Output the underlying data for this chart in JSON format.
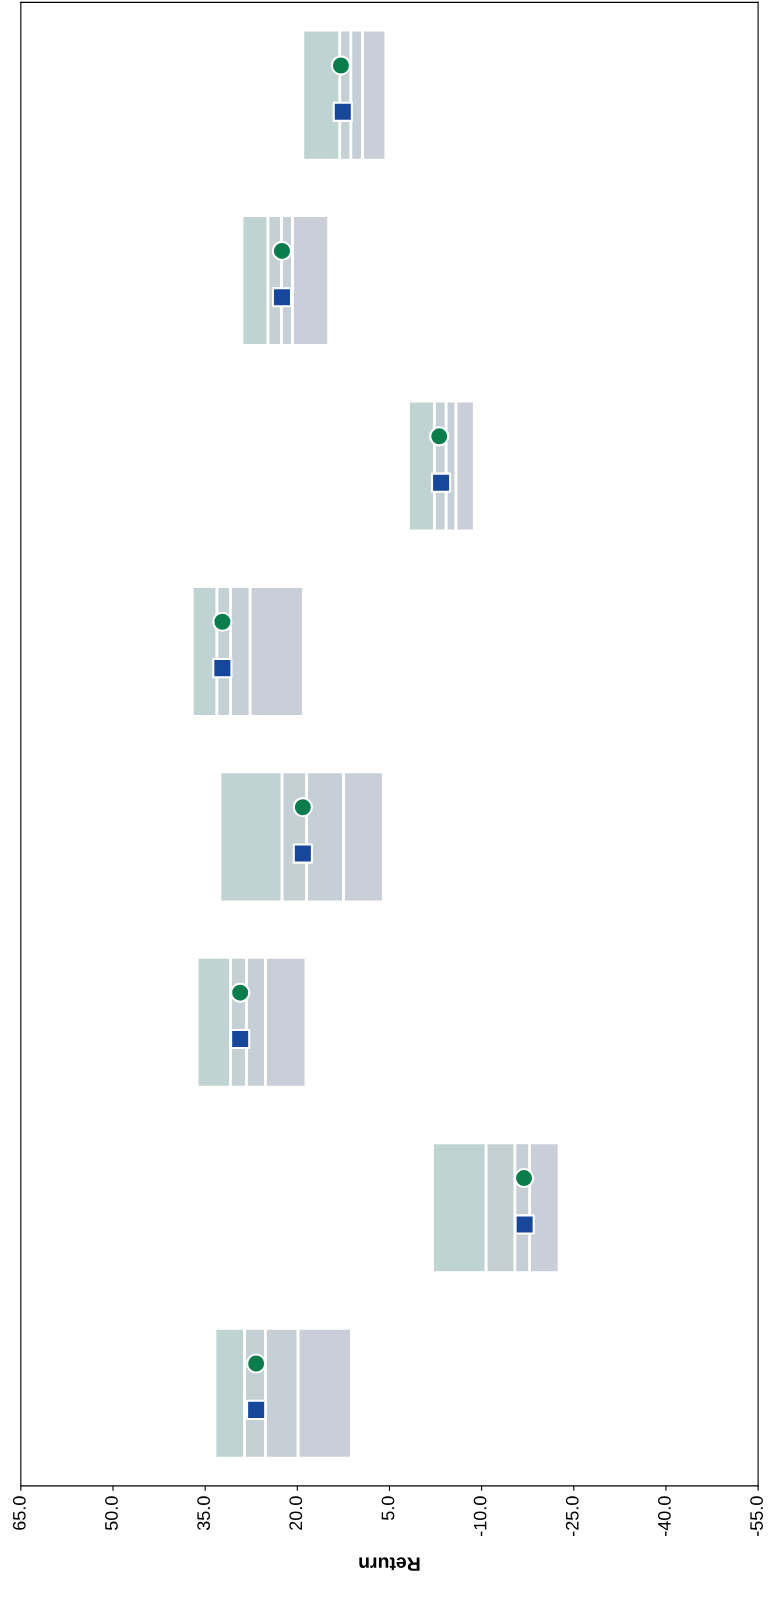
{
  "chart_data": {
    "type": "bar",
    "orientation": "horizontal",
    "xlabel": "Return",
    "categories": [
      null,
      null,
      null,
      null,
      null,
      null,
      null,
      null
    ],
    "xlim": [
      65,
      -55
    ],
    "xticks": [
      {
        "value": 65,
        "label": "65.0"
      },
      {
        "value": 50,
        "label": "50.0"
      },
      {
        "value": 35,
        "label": "35.0"
      },
      {
        "value": 20,
        "label": "20.0"
      },
      {
        "value": 5,
        "label": "5.0"
      },
      {
        "value": -10,
        "label": "-10.0"
      },
      {
        "value": -25,
        "label": "-25.0"
      },
      {
        "value": -40,
        "label": "-40.0"
      },
      {
        "value": -55,
        "label": "-55.0"
      }
    ],
    "series": [
      {
        "color": "#c9ced8",
        "base": [
          5.6,
          14.9,
          -8.8,
          19.0,
          6.0,
          18.6,
          -22.6,
          11.2
        ],
        "values": [
          3.8,
          5.9,
          3.0,
          8.7,
          6.5,
          6.6,
          4.8,
          8.7
        ]
      },
      {
        "color": "#c6ced6",
        "base": [
          9.4,
          20.8,
          -5.8,
          27.7,
          12.5,
          25.2,
          -17.8,
          19.9
        ],
        "values": [
          1.9,
          1.8,
          1.6,
          3.2,
          6.0,
          3.1,
          2.4,
          5.3
        ]
      },
      {
        "color": "#c4d0d3",
        "base": [
          11.3,
          22.6,
          -4.2,
          30.9,
          18.5,
          28.3,
          -15.4,
          25.2
        ],
        "values": [
          1.8,
          2.2,
          1.9,
          2.2,
          4.0,
          2.6,
          4.7,
          3.4
        ]
      },
      {
        "color": "#bfd3d3",
        "base": [
          13.1,
          24.8,
          -2.3,
          33.1,
          22.5,
          30.9,
          -10.7,
          28.6
        ],
        "values": [
          6.0,
          4.2,
          4.2,
          4.0,
          10.1,
          5.4,
          8.7,
          4.8
        ]
      },
      {
        "type": "scatter",
        "marker": "circle",
        "color": "#0b7d4c",
        "values": [
          12.9,
          22.5,
          -3.1,
          32.2,
          19.1,
          29.3,
          -16.9,
          26.7
        ]
      },
      {
        "type": "scatter",
        "marker": "square",
        "color": "#17479b",
        "values": [
          12.6,
          22.5,
          -3.4,
          32.2,
          19.1,
          29.3,
          -17.0,
          26.7
        ]
      }
    ]
  }
}
